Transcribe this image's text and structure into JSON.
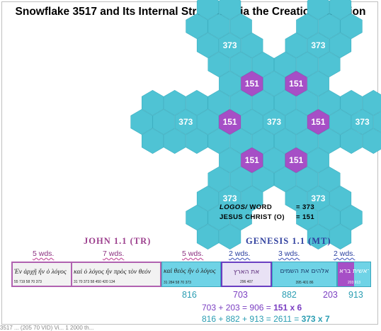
{
  "title": "Snowflake 3517 and Its Internal Structure Via the Creation Function",
  "snowflake": {
    "outer_value": "373",
    "inner_value": "151",
    "colors": {
      "outer": "#4fc3d4",
      "inner": "#a64fc6",
      "label": "#ffffff"
    }
  },
  "legend": {
    "logos_label": "LOGOS/",
    "word_label": "WORD",
    "word_value": "= 373",
    "jesus_label": "JESUS CHRIST (O)",
    "jesus_value": "= 151"
  },
  "headers": {
    "john": "JOHN 1.1 (TR)",
    "genesis": "GENESIS 1.1 (MT)"
  },
  "word_counts": [
    "5 wds.",
    "7 wds.",
    "5 wds.",
    "2 wds.",
    "3 wds.",
    "2 wds."
  ],
  "verse_strip": {
    "john_a": {
      "text": "Ἐν ἀρχῇ ἦν ὁ λόγος",
      "nums": "55   719   58   70   373"
    },
    "john_b": {
      "text": "καὶ ὁ λόγος ἦν πρὸς τὸν θεόν",
      "nums": "31   70   373   58   450   420   134"
    },
    "john_c": {
      "text": "καὶ θεὸς ἦν ὁ λόγος",
      "nums": "31   284   58   70   373"
    },
    "gen_a": {
      "text": "את הארץ",
      "nums": "296   407"
    },
    "gen_b": {
      "text": "אלהים את השמים",
      "nums": "395   401   86"
    },
    "gen_c": {
      "text": "בראשית ברא",
      "nums": "203   913"
    }
  },
  "group_totals": [
    "816",
    "703",
    "882",
    "203",
    "913"
  ],
  "equations": [
    {
      "lhs": "703 + 203 = 906 = ",
      "rhs": "151 x 6"
    },
    {
      "lhs": "816 + 882 + 913 = 2611 = ",
      "rhs": "373 x 7"
    }
  ],
  "footer_fragment": "3517 ... (205 70 VID) Vi... 1 2000 th..."
}
